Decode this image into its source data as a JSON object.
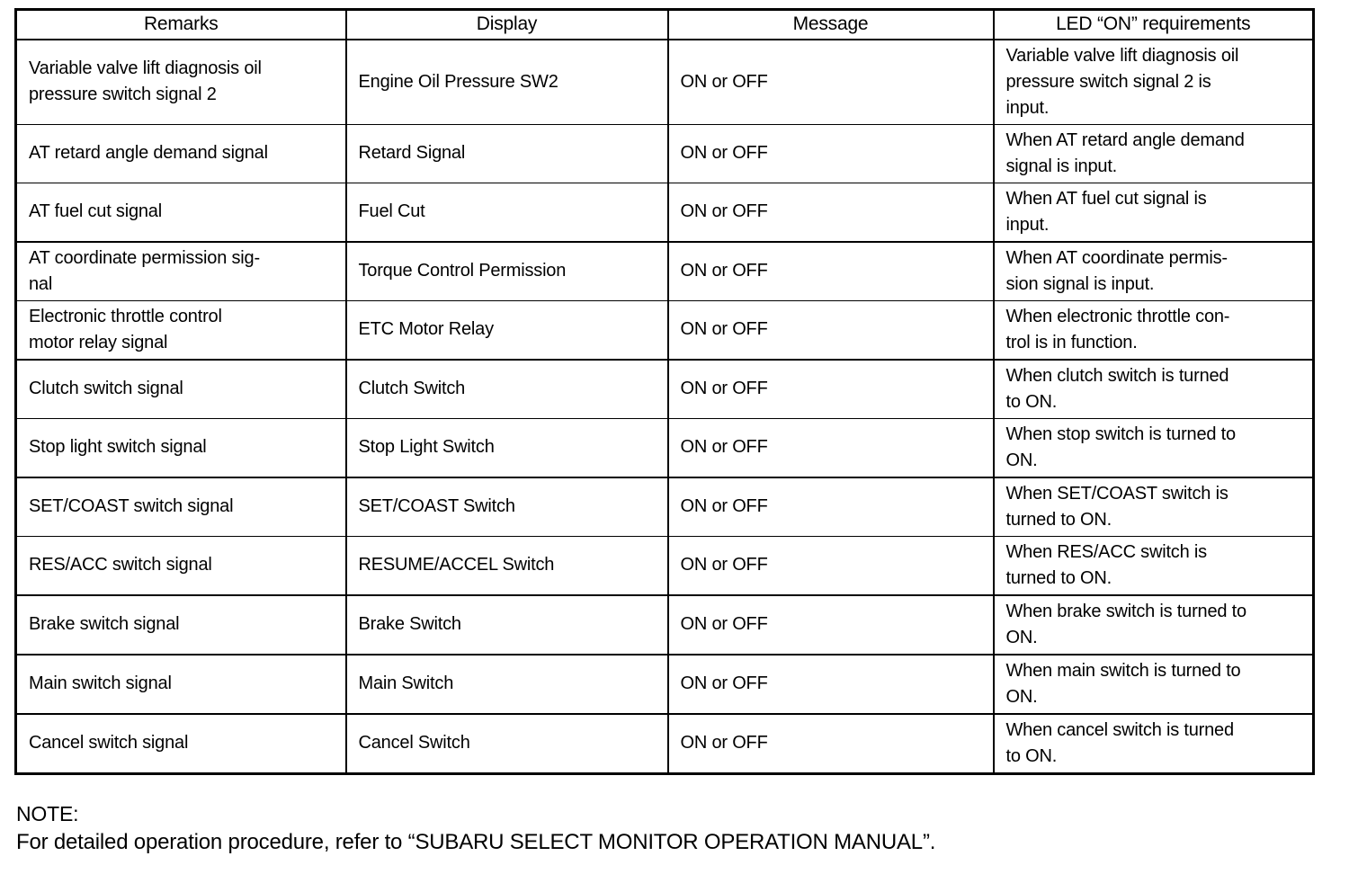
{
  "table": {
    "headers": {
      "remarks": "Remarks",
      "display": "Display",
      "message": "Message",
      "led": "LED “ON” requirements"
    },
    "rows": [
      {
        "remarks": "Variable valve lift diagnosis oil\npressure switch signal 2",
        "display": "Engine Oil Pressure SW2",
        "message": "ON or OFF",
        "led": "Variable valve lift diagnosis oil\npressure switch signal 2 is\ninput."
      },
      {
        "remarks": "AT retard angle demand signal",
        "display": "Retard Signal",
        "message": "ON or OFF",
        "led": "When AT retard angle demand\nsignal is input."
      },
      {
        "remarks": "AT fuel cut signal",
        "display": "Fuel Cut",
        "message": "ON or OFF",
        "led": "When AT fuel cut signal is\ninput."
      },
      {
        "remarks": "AT coordinate permission sig-\nnal",
        "display": "Torque Control Permission",
        "message": "ON or OFF",
        "led": "When AT coordinate permis-\nsion signal is input."
      },
      {
        "remarks": "Electronic throttle control\nmotor relay signal",
        "display": "ETC Motor Relay",
        "message": "ON or OFF",
        "led": "When electronic throttle con-\ntrol is in function."
      },
      {
        "remarks": "Clutch switch signal",
        "display": "Clutch Switch",
        "message": "ON or OFF",
        "led": "When clutch switch is turned\nto ON."
      },
      {
        "remarks": "Stop light switch signal",
        "display": "Stop Light Switch",
        "message": "ON or OFF",
        "led": "When stop switch is turned to\nON."
      },
      {
        "remarks": "SET/COAST switch signal",
        "display": "SET/COAST Switch",
        "message": "ON or OFF",
        "led": "When SET/COAST switch is\nturned to ON."
      },
      {
        "remarks": "RES/ACC switch signal",
        "display": "RESUME/ACCEL Switch",
        "message": "ON or OFF",
        "led": "When RES/ACC switch is\nturned to ON."
      },
      {
        "remarks": "Brake switch signal",
        "display": "Brake Switch",
        "message": "ON or OFF",
        "led": "When brake switch is turned to\nON."
      },
      {
        "remarks": "Main switch signal",
        "display": "Main Switch",
        "message": "ON or OFF",
        "led": "When main switch is turned to\nON."
      },
      {
        "remarks": "Cancel switch signal",
        "display": "Cancel Switch",
        "message": "ON or OFF",
        "led": "When cancel switch is turned\nto ON."
      }
    ]
  },
  "note": {
    "label": "NOTE:",
    "text": "For detailed operation procedure, refer to “SUBARU SELECT MONITOR OPERATION MANUAL”."
  }
}
